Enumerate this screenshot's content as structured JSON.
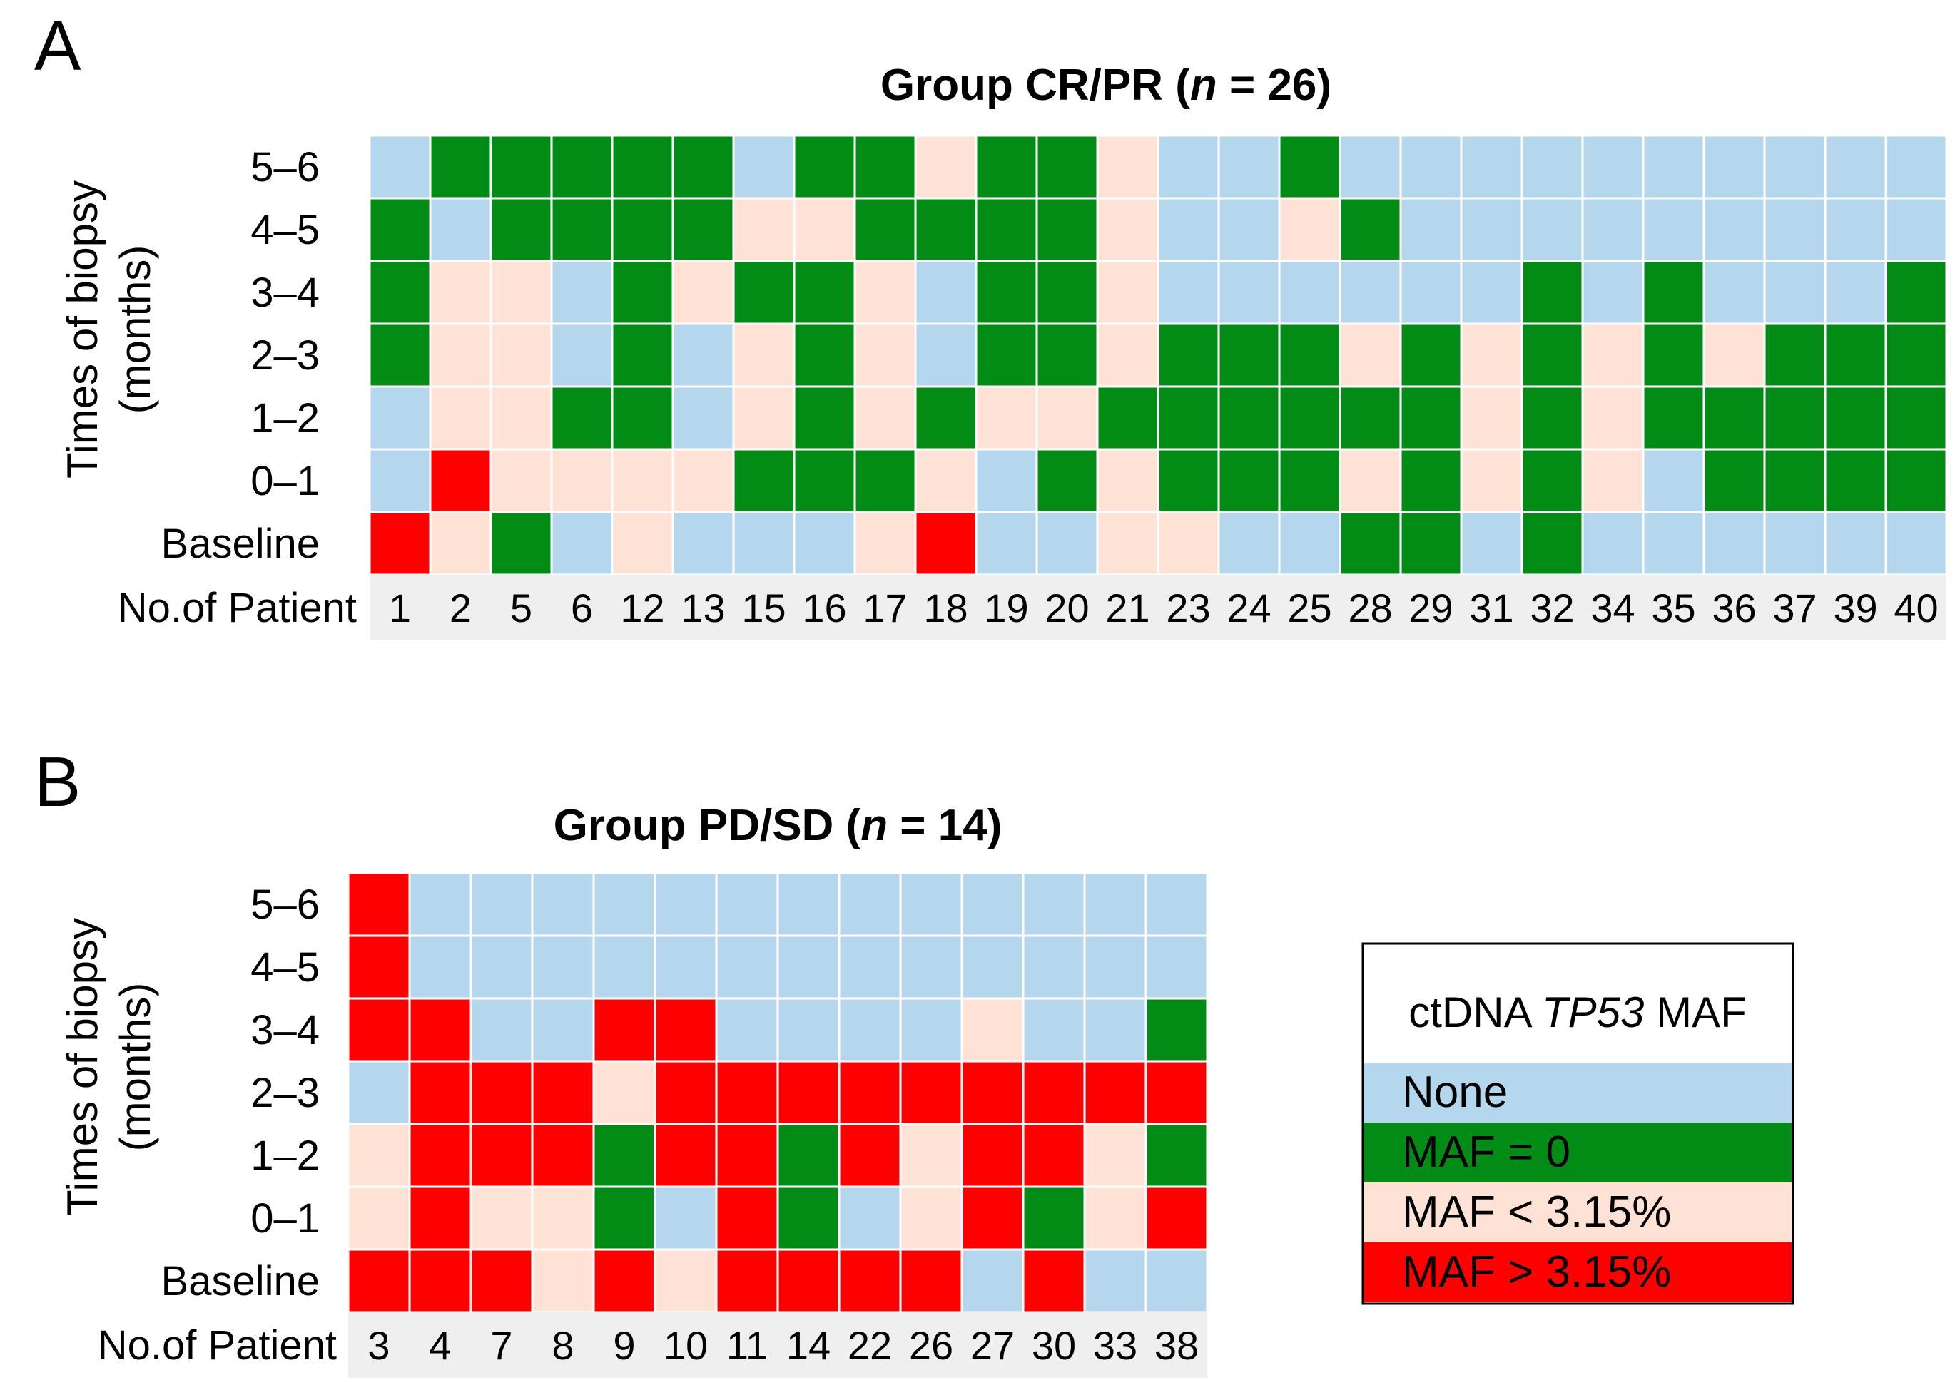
{
  "figure": {
    "panel_a_letter": "A",
    "panel_b_letter": "B"
  },
  "legend": {
    "title_pre": "ctDNA ",
    "title_gene": "TP53",
    "title_post": " MAF",
    "items": [
      {
        "code": "N",
        "label": "None",
        "color": "#b4d7ee"
      },
      {
        "code": "Z",
        "label": "MAF = 0",
        "color": "#038c15"
      },
      {
        "code": "L",
        "label": "MAF < 3.15%",
        "color": "#fde2d5"
      },
      {
        "code": "H",
        "label": "MAF > 3.15%",
        "color": "#fe0000"
      }
    ]
  },
  "chart_data": [
    {
      "type": "heatmap",
      "title_pre": "Group CR/PR (",
      "title_n": "n",
      "title_post": " = 26)",
      "ylabel_line1": "Times of biopsy",
      "ylabel_line2": "(months)",
      "xlabel": "No.of Patient",
      "rows": [
        "5–6",
        "4–5",
        "3–4",
        "2–3",
        "1–2",
        "0–1",
        "Baseline"
      ],
      "columns": [
        "1",
        "2",
        "5",
        "6",
        "12",
        "13",
        "15",
        "16",
        "17",
        "18",
        "19",
        "20",
        "21",
        "23",
        "24",
        "25",
        "28",
        "29",
        "31",
        "32",
        "34",
        "35",
        "36",
        "37",
        "39",
        "40"
      ],
      "values": [
        "NZZZZZNZZLZZLNNZNNNNNNNNNN",
        "ZNZZZZLLZZZZLNNLZNNNNNNNNN",
        "ZLLNZLZZLNZZLNNNNNNZNZNNNZ",
        "ZLLNZNLZLNZZLZZZLZLZLZLZZZ",
        "NLLZZNLZLZLLZZZZZZLZLZZZZZ",
        "NHLLLLZZZLNZLZZZLZLZLNZZZZ",
        "HLZNLNNNLHNNLLNNZZNZNNNNNN"
      ]
    },
    {
      "type": "heatmap",
      "title_pre": "Group PD/SD (",
      "title_n": "n",
      "title_post": " = 14)",
      "ylabel_line1": "Times of biopsy",
      "ylabel_line2": "(months)",
      "xlabel": "No.of Patient",
      "rows": [
        "5–6",
        "4–5",
        "3–4",
        "2–3",
        "1–2",
        "0–1",
        "Baseline"
      ],
      "columns": [
        "3",
        "4",
        "7",
        "8",
        "9",
        "10",
        "11",
        "14",
        "22",
        "26",
        "27",
        "30",
        "33",
        "38"
      ],
      "values": [
        "HNNNNNNNNNNNNN",
        "HNNNNNNNNNNNNN",
        "HHNNHHNNNNLNNZ",
        "NHHHLHHHHHHHHH",
        "LHHHZHHZHLHHLZ",
        "LHLLZNHZNLHZLH",
        "HHHLHLHHHHNHNN"
      ]
    }
  ]
}
